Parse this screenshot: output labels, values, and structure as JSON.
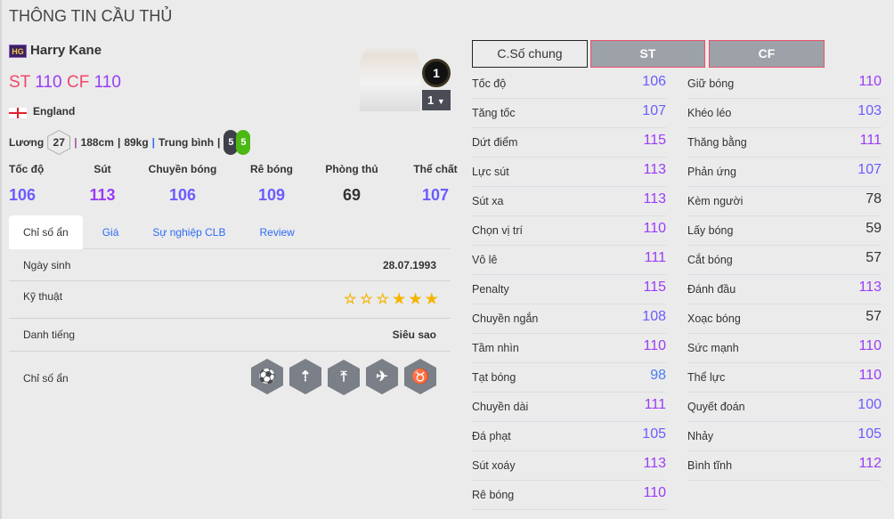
{
  "page_title": "THÔNG TIN CẦU THỦ",
  "player": {
    "season_badge": "HG",
    "name": "Harry Kane",
    "positions": [
      {
        "pos": "ST",
        "ovr": "110"
      },
      {
        "pos": "CF",
        "ovr": "110"
      }
    ],
    "country": "England",
    "salary_label": "Lương",
    "salary": "27",
    "height": "188cm",
    "weight": "89kg",
    "body_type": "Trung bình",
    "left_foot": "5",
    "right_foot": "5",
    "upgrade_level": "1",
    "level_select": "1"
  },
  "summary": [
    {
      "label": "Tốc độ",
      "value": "106",
      "color": "#6a5cff"
    },
    {
      "label": "Sút",
      "value": "113",
      "color": "#9a3cf5"
    },
    {
      "label": "Chuyền bóng",
      "value": "106",
      "color": "#6a5cff"
    },
    {
      "label": "Rê bóng",
      "value": "109",
      "color": "#6a5cff"
    },
    {
      "label": "Phòng thủ",
      "value": "69",
      "color": "#333333"
    },
    {
      "label": "Thể chất",
      "value": "107",
      "color": "#6a5cff"
    }
  ],
  "tabs": [
    "Chỉ số ẩn",
    "Giá",
    "Sự nghiệp CLB",
    "Review"
  ],
  "details": {
    "birth_label": "Ngày sinh",
    "birth": "28.07.1993",
    "skill_label": "Kỹ thuật",
    "skill_stars": 3,
    "skill_stars_max": 6,
    "fame_label": "Danh tiếng",
    "fame": "Siêu sao",
    "traits_label": "Chỉ số ẩn",
    "traits": [
      "finesse-shot-icon",
      "long-shot-icon",
      "power-header-icon",
      "flair-icon",
      "bull-icon"
    ]
  },
  "stat_tabs": [
    "C.Số chung",
    "ST",
    "CF"
  ],
  "stats_left": [
    [
      "Tốc độ",
      "106"
    ],
    [
      "Tăng tốc",
      "107"
    ],
    [
      "Dứt điểm",
      "115"
    ],
    [
      "Lực sút",
      "113"
    ],
    [
      "Sút xa",
      "113"
    ],
    [
      "Chọn vị trí",
      "110"
    ],
    [
      "Vô lê",
      "111"
    ],
    [
      "Penalty",
      "115"
    ],
    [
      "Chuyền ngắn",
      "108"
    ],
    [
      "Tầm nhìn",
      "110"
    ],
    [
      "Tạt bóng",
      "98"
    ],
    [
      "Chuyền dài",
      "111"
    ],
    [
      "Đá phạt",
      "105"
    ],
    [
      "Sút xoáy",
      "113"
    ],
    [
      "Rê bóng",
      "110"
    ]
  ],
  "stats_right": [
    [
      "Giữ bóng",
      "110"
    ],
    [
      "Khéo léo",
      "103"
    ],
    [
      "Thăng bằng",
      "111"
    ],
    [
      "Phản ứng",
      "107"
    ],
    [
      "Kèm người",
      "78"
    ],
    [
      "Lấy bóng",
      "59"
    ],
    [
      "Cắt bóng",
      "57"
    ],
    [
      "Đánh đầu",
      "113"
    ],
    [
      "Xoạc bóng",
      "57"
    ],
    [
      "Sức mạnh",
      "110"
    ],
    [
      "Thể lực",
      "110"
    ],
    [
      "Quyết đoán",
      "100"
    ],
    [
      "Nhảy",
      "105"
    ],
    [
      "Bình tĩnh",
      "112"
    ]
  ],
  "colors": {
    "high": "#9a3cf5",
    "mid": "#6a5cff",
    "low": "#4a7cf0",
    "plain": "#333333",
    "accent": "#f0466a"
  }
}
